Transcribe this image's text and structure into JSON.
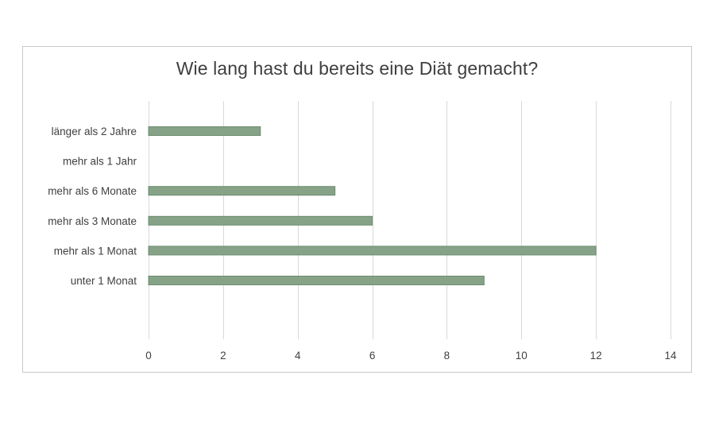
{
  "chart_data": {
    "type": "bar",
    "orientation": "horizontal",
    "title": "Wie lang hast du bereits eine Diät gemacht?",
    "categories": [
      "länger als 2 Jahre",
      "mehr als 1 Jahr",
      "mehr als 6 Monate",
      "mehr als 3 Monate",
      "mehr als 1 Monat",
      "unter 1 Monat"
    ],
    "values": [
      3,
      0,
      5,
      6,
      12,
      9
    ],
    "xlim": [
      0,
      14
    ],
    "xticks": [
      0,
      2,
      4,
      6,
      8,
      10,
      12,
      14
    ],
    "xlabel": "",
    "ylabel": "",
    "grid": "vertical",
    "legend": "none",
    "bar_color": "#86a287",
    "bar_edge_color": "#6e8c70",
    "grid_color": "#d9d9d9"
  }
}
